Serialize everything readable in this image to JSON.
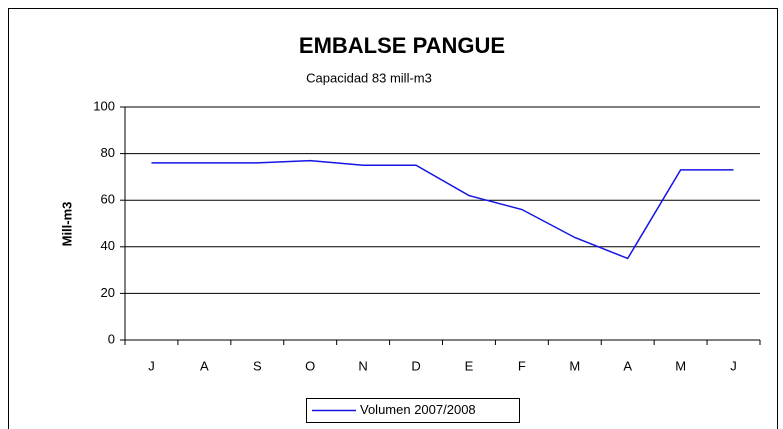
{
  "chart_data": {
    "type": "line",
    "title": "EMBALSE PANGUE",
    "subtitle": "Capacidad  83 mill-m3",
    "y_label": "Mill-m3",
    "categories": [
      "J",
      "A",
      "S",
      "O",
      "N",
      "D",
      "E",
      "F",
      "M",
      "A",
      "M",
      "J"
    ],
    "series": [
      {
        "name": "Volumen  2007/2008",
        "color": "#1414e6",
        "values": [
          76,
          76,
          76,
          77,
          75,
          75,
          62,
          56,
          44,
          35,
          73,
          73
        ]
      }
    ],
    "ylim": [
      0,
      100
    ],
    "yticks": [
      0,
      20,
      40,
      60,
      80,
      100
    ],
    "grid": true,
    "legend": "bottom"
  }
}
